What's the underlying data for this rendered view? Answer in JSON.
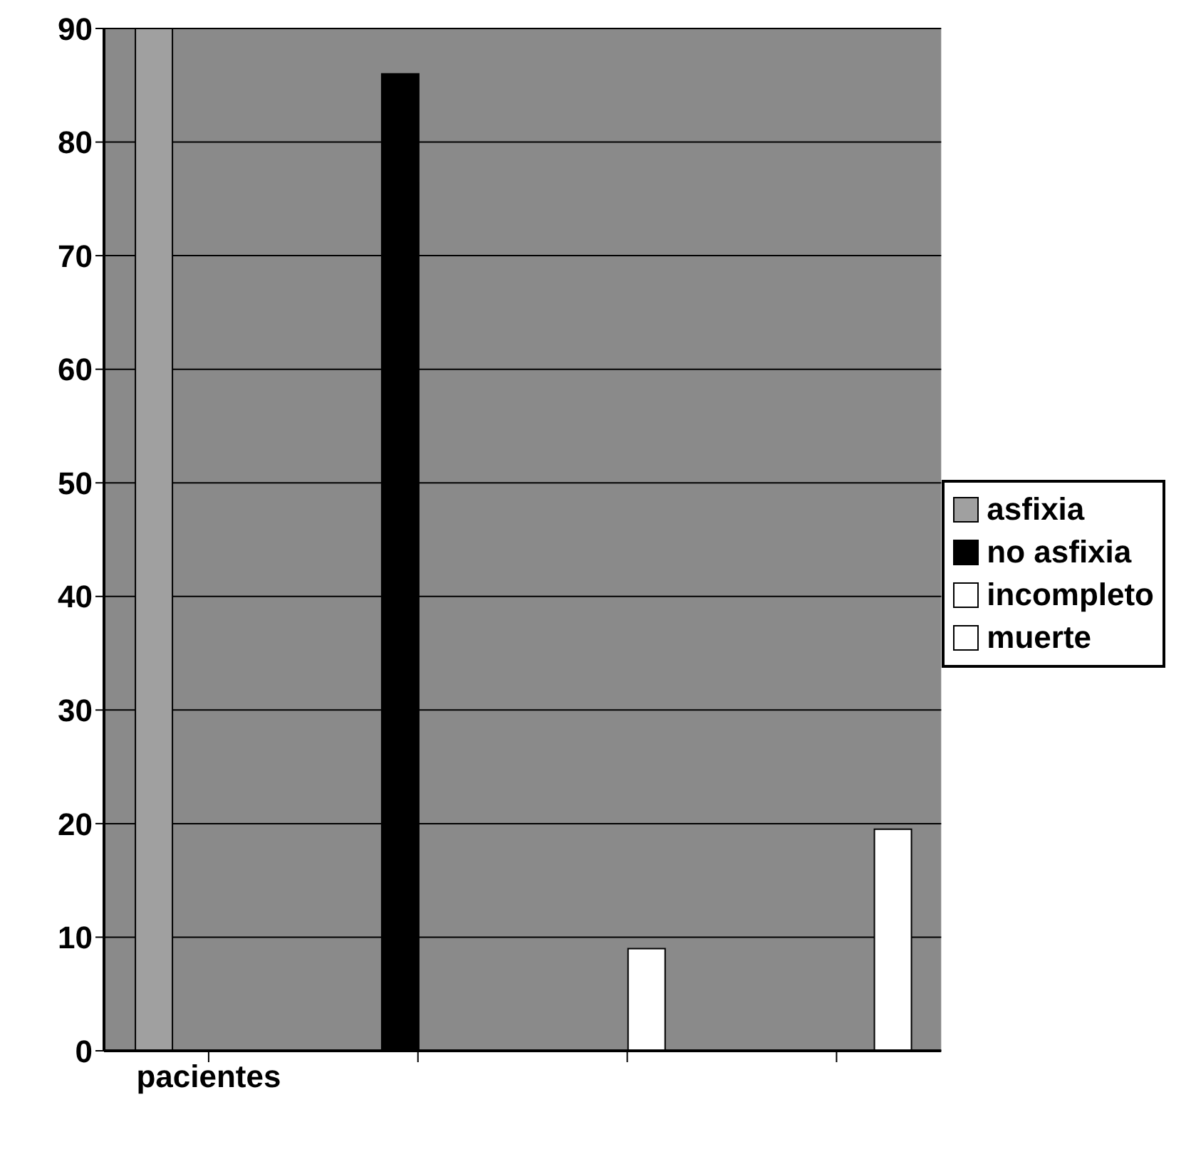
{
  "chart_data": {
    "type": "bar",
    "categories": [
      "pacientes",
      null,
      null,
      null
    ],
    "series": [
      {
        "name": "asfixia",
        "color": "#a0a0a0",
        "values": [
          90,
          null,
          null,
          null
        ]
      },
      {
        "name": "no asfixia",
        "color": "#000000",
        "values": [
          null,
          86,
          null,
          null
        ]
      },
      {
        "name": "incompleto",
        "color": "#ffffff",
        "values": [
          null,
          null,
          9,
          null
        ]
      },
      {
        "name": "muerte",
        "color": "#ffffff",
        "values": [
          null,
          null,
          null,
          19.5
        ]
      }
    ],
    "ylim": [
      0,
      90
    ],
    "yticks": [
      0,
      10,
      20,
      30,
      40,
      50,
      60,
      70,
      80,
      90
    ],
    "grid": "y",
    "legend": "right"
  }
}
